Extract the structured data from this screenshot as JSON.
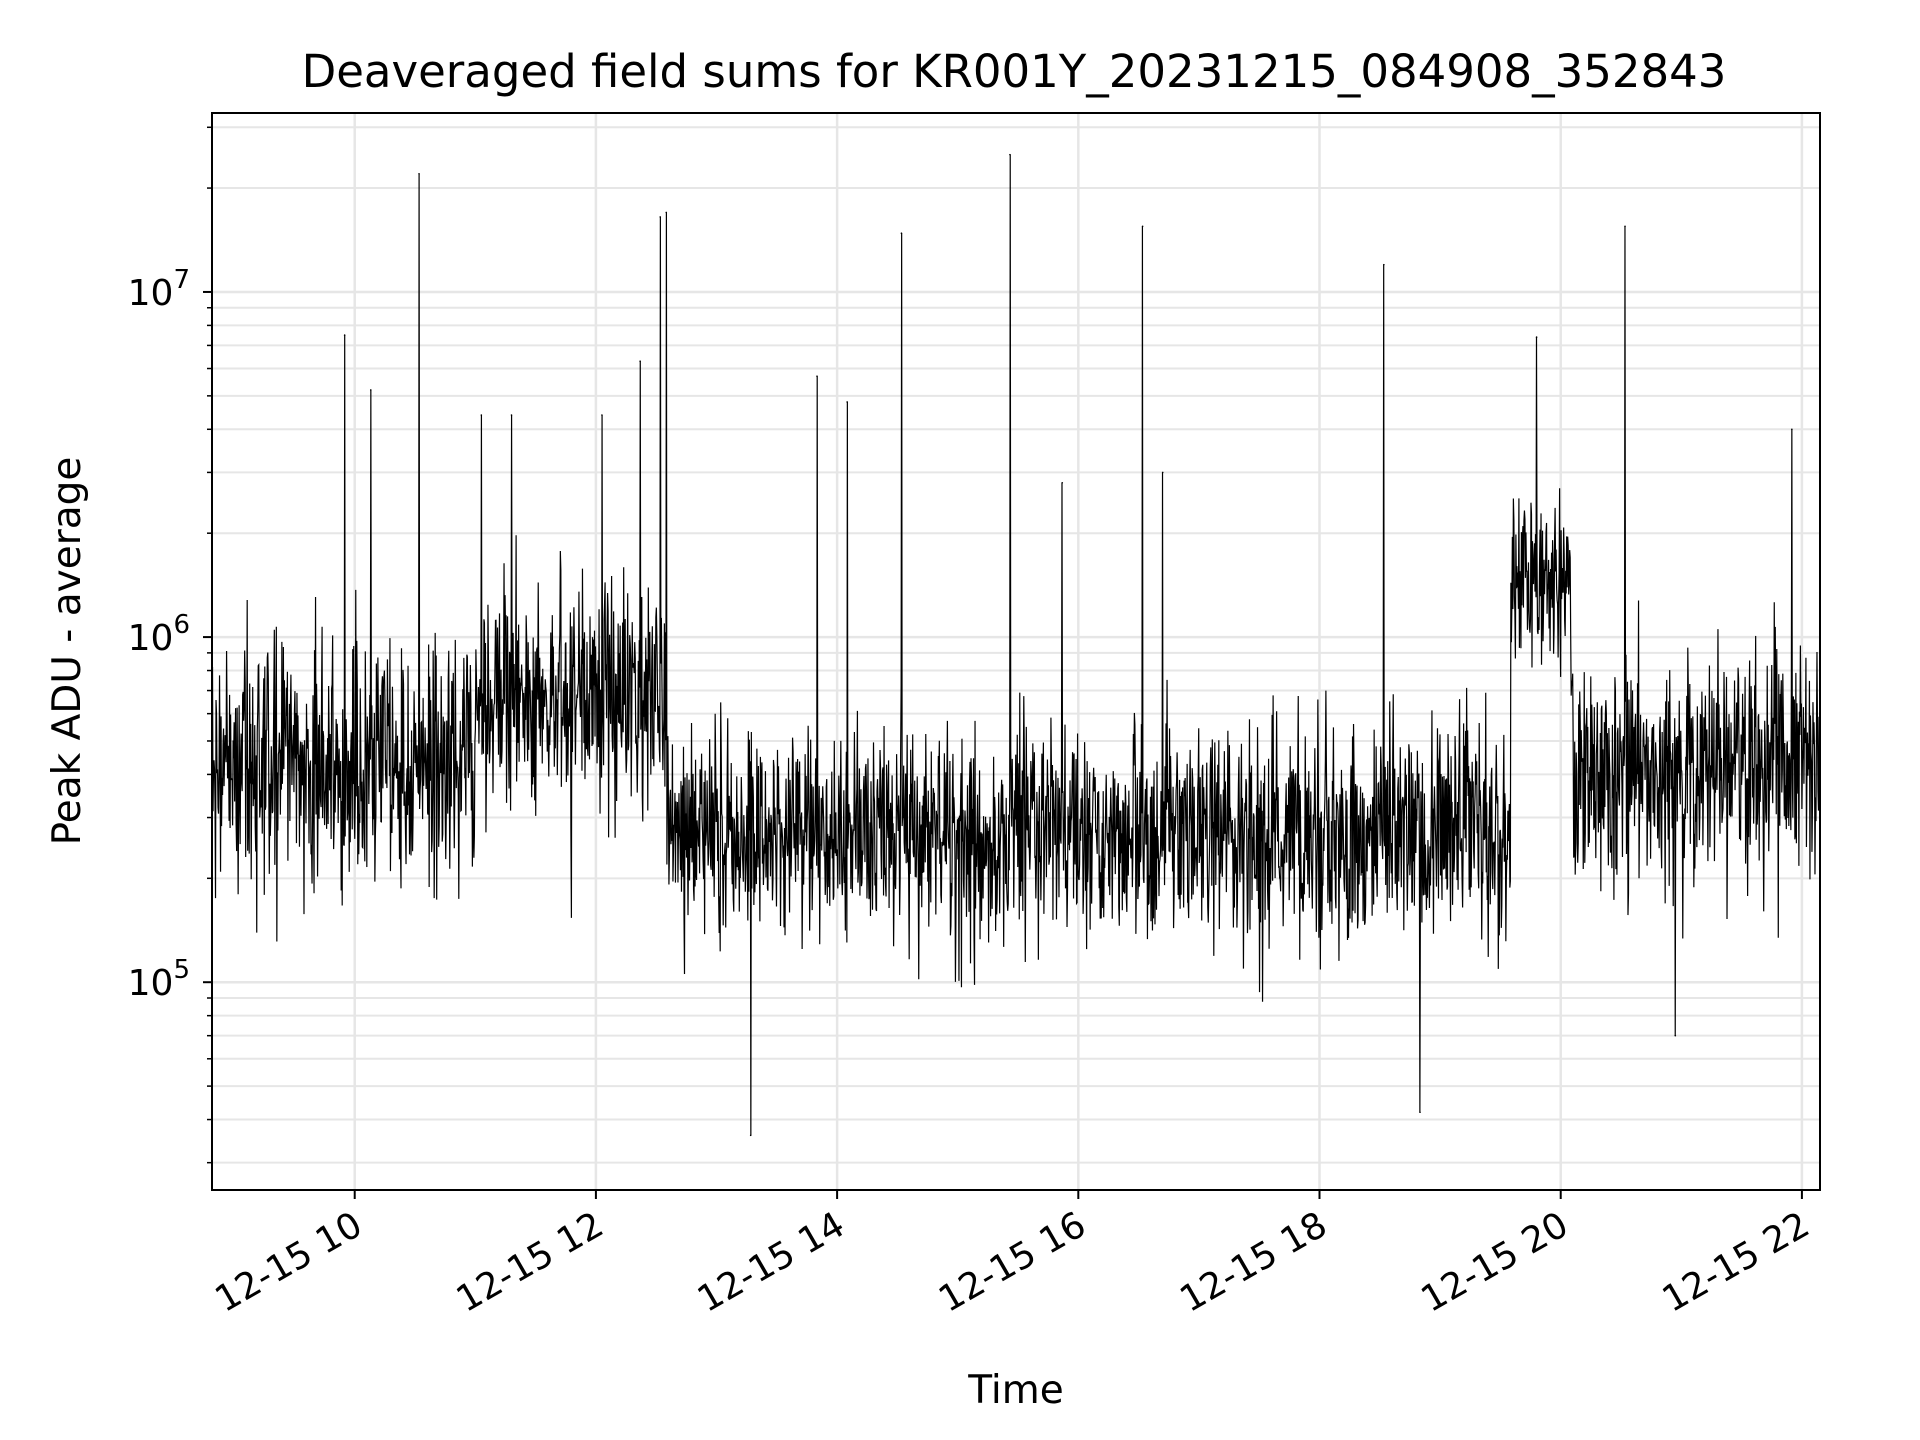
{
  "chart_data": {
    "type": "line",
    "title": "Deaveraged field sums for KR001Y_20231215_084908_352843",
    "xlabel": "Time",
    "ylabel": "Peak ADU - average",
    "yscale": "log",
    "grid": true,
    "line_color": "#000000",
    "grid_color": "#e6e6e6",
    "x_range": [
      "2023-12-15 08:49:00",
      "2023-12-15 22:09:00"
    ],
    "ylim": [
      25000,
      33000000
    ],
    "x_ticks": [
      {
        "value": "2023-12-15 10:00",
        "label": "12-15 10"
      },
      {
        "value": "2023-12-15 12:00",
        "label": "12-15 12"
      },
      {
        "value": "2023-12-15 14:00",
        "label": "12-15 14"
      },
      {
        "value": "2023-12-15 16:00",
        "label": "12-15 16"
      },
      {
        "value": "2023-12-15 18:00",
        "label": "12-15 18"
      },
      {
        "value": "2023-12-15 20:00",
        "label": "12-15 20"
      },
      {
        "value": "2023-12-15 22:00",
        "label": "12-15 22"
      }
    ],
    "y_ticks": [
      {
        "value": 100000,
        "base": "10",
        "exp": "5"
      },
      {
        "value": 1000000,
        "base": "10",
        "exp": "6"
      },
      {
        "value": 10000000,
        "base": "10",
        "exp": "7"
      }
    ],
    "segments": [
      {
        "start": "2023-12-15 08:49",
        "end": "2023-12-15 11:00",
        "median": 420000,
        "spread": 0.65
      },
      {
        "start": "2023-12-15 11:00",
        "end": "2023-12-15 12:35",
        "median": 650000,
        "spread": 0.6
      },
      {
        "start": "2023-12-15 12:35",
        "end": "2023-12-15 19:35",
        "median": 270000,
        "spread": 0.55
      },
      {
        "start": "2023-12-15 19:35",
        "end": "2023-12-15 20:05",
        "median": 1500000,
        "spread": 0.45
      },
      {
        "start": "2023-12-15 20:05",
        "end": "2023-12-15 22:09",
        "median": 420000,
        "spread": 0.6
      }
    ],
    "spikes": [
      {
        "x": "2023-12-15 09:55",
        "y": 7500000
      },
      {
        "x": "2023-12-15 10:08",
        "y": 5200000
      },
      {
        "x": "2023-12-15 10:32",
        "y": 22000000
      },
      {
        "x": "2023-12-15 11:03",
        "y": 4400000
      },
      {
        "x": "2023-12-15 11:18",
        "y": 4400000
      },
      {
        "x": "2023-12-15 12:03",
        "y": 4400000
      },
      {
        "x": "2023-12-15 12:22",
        "y": 6300000
      },
      {
        "x": "2023-12-15 12:32",
        "y": 16500000
      },
      {
        "x": "2023-12-15 12:35",
        "y": 17000000
      },
      {
        "x": "2023-12-15 13:17",
        "y": 36000
      },
      {
        "x": "2023-12-15 13:50",
        "y": 5700000
      },
      {
        "x": "2023-12-15 14:05",
        "y": 4800000
      },
      {
        "x": "2023-12-15 14:32",
        "y": 14800000
      },
      {
        "x": "2023-12-15 15:26",
        "y": 25000000
      },
      {
        "x": "2023-12-15 15:52",
        "y": 2800000
      },
      {
        "x": "2023-12-15 16:32",
        "y": 15500000
      },
      {
        "x": "2023-12-15 16:42",
        "y": 3000000
      },
      {
        "x": "2023-12-15 18:32",
        "y": 12000000
      },
      {
        "x": "2023-12-15 18:50",
        "y": 42000
      },
      {
        "x": "2023-12-15 19:48",
        "y": 7400000
      },
      {
        "x": "2023-12-15 20:32",
        "y": 15500000
      },
      {
        "x": "2023-12-15 20:57",
        "y": 70000
      },
      {
        "x": "2023-12-15 21:55",
        "y": 4000000
      }
    ]
  }
}
